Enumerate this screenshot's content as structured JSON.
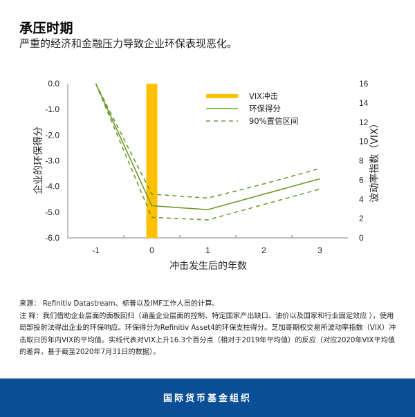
{
  "header": {
    "title": "承压时期",
    "subtitle": "严重的经济和金融压力导致企业环保表现恶化。"
  },
  "colors": {
    "vix_bar": "#ffc000",
    "env_score": "#6b9a2a",
    "ci": "#6b9a2a",
    "axis": "#808080",
    "footer_bg": "#0a4e96"
  },
  "chart_data": {
    "type": "line",
    "title": "承压时期",
    "subtitle": "严重的经济和金融压力导致企业环保表现恶化。",
    "xlabel": "冲击发生后的年数",
    "ylabel": "企业的环保得分",
    "y2label": "波动率指数（VIX）",
    "categories": [
      "-1",
      "0",
      "1",
      "2",
      "3"
    ],
    "ylim": [
      -6.0,
      0.0
    ],
    "y_ticks": [
      "0.0",
      "-1.0",
      "-2.0",
      "-3.0",
      "-4.0",
      "-5.0",
      "-6.0"
    ],
    "y2lim": [
      0,
      16
    ],
    "y2_ticks": [
      "16",
      "14",
      "12",
      "10",
      "8",
      "6",
      "4",
      "2",
      "0"
    ],
    "grid": false,
    "legend_position": "top-right inside",
    "series": [
      {
        "name": "VIX冲击",
        "type": "bar",
        "axis": "right",
        "values": [
          null,
          16.3,
          null,
          null,
          null
        ]
      },
      {
        "name": "环保得分",
        "type": "line",
        "style": "solid",
        "axis": "left",
        "values": [
          0.0,
          -4.75,
          -4.9,
          -4.3,
          -3.7
        ]
      },
      {
        "name": "90%置信区间 (上限)",
        "type": "line",
        "style": "dashed",
        "axis": "left",
        "values": [
          0.0,
          -4.3,
          -4.45,
          -3.9,
          -3.3
        ]
      },
      {
        "name": "90%置信区间 (下限)",
        "type": "line",
        "style": "dashed",
        "axis": "left",
        "values": [
          0.0,
          -5.2,
          -5.3,
          -4.7,
          -4.1
        ]
      }
    ],
    "legend": [
      "VIX冲击",
      "环保得分",
      "90%置信区间"
    ]
  },
  "notes": {
    "source": "来源： Refinitiv Datastream、标普以及IMF工作人员的计算。",
    "note": "注 释：我们借助企业层面的面板回归（涵盖企业层面的控制、特定国家产出缺口、油价以及国家和行业固定效应 ），使用局部投射法得出企业的环保响应。环保得分为Refinitiv Asset4的环保支柱得分。芝加哥期权交易所波动率指数（VIX）冲击取日历年内VIX的平均值。实线代表对VIX上升16.3个百分点（相对于2019年平均值）的反应（对应2020年VIX平均值的差异，基于截至2020年7月31日的数据）。"
  },
  "footer": {
    "org": "国际货币基金组织"
  }
}
